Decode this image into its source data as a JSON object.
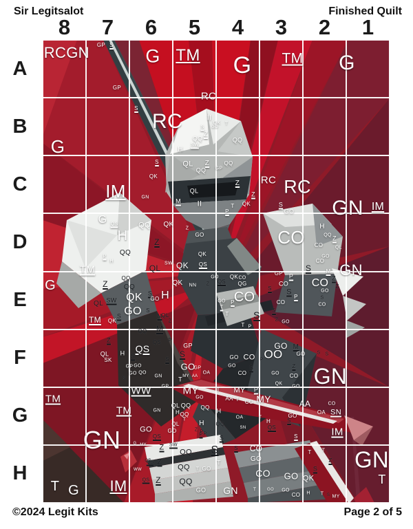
{
  "page": {
    "title_left": "Sir Legitsalot",
    "title_right": "Finished Quilt",
    "footer_left": "©2024 Legit Kits",
    "footer_right": "Page 2 of 5"
  },
  "grid": {
    "columns": [
      "8",
      "7",
      "6",
      "5",
      "4",
      "3",
      "2",
      "1"
    ],
    "rows": [
      "A",
      "B",
      "C",
      "D",
      "E",
      "F",
      "G",
      "H"
    ]
  },
  "colors": {
    "label_light": "#ffffff",
    "label_dark": "#15181c",
    "grid_line": "#ffffff",
    "bg_base": "#8f1a28",
    "bright_red": "#c50f20",
    "maroon": "#5e1c2e"
  },
  "labels": [
    [
      "RC",
      18,
      19,
      22,
      ""
    ],
    [
      "GN",
      51,
      19,
      22,
      ""
    ],
    [
      "GP",
      85,
      8,
      8,
      ""
    ],
    [
      "S",
      100,
      8,
      8,
      "u"
    ],
    [
      "G",
      160,
      24,
      27,
      ""
    ],
    [
      "TM",
      211,
      23,
      24,
      "u"
    ],
    [
      "G",
      290,
      37,
      34,
      ""
    ],
    [
      "TM",
      363,
      27,
      21,
      "u"
    ],
    [
      "G",
      442,
      34,
      30,
      ""
    ],
    [
      "GP",
      108,
      70,
      8,
      ""
    ],
    [
      "RC",
      241,
      82,
      15,
      ""
    ],
    [
      "G",
      22,
      155,
      26,
      ""
    ],
    [
      "RC",
      181,
      119,
      30,
      ""
    ],
    [
      "S",
      136,
      100,
      8,
      "u"
    ],
    [
      "II",
      242,
      114,
      11,
      ""
    ],
    [
      "QK",
      253,
      121,
      7,
      ""
    ],
    [
      "T",
      267,
      122,
      7,
      ""
    ],
    [
      "Z",
      237,
      138,
      10,
      "u"
    ],
    [
      "QQ",
      225,
      144,
      9,
      ""
    ],
    [
      "QQ",
      283,
      146,
      9,
      ""
    ],
    [
      "SW",
      221,
      153,
      7,
      "u"
    ],
    [
      "S",
      232,
      127,
      7,
      "u"
    ],
    [
      "GO",
      250,
      127,
      6,
      ""
    ],
    [
      "H",
      200,
      160,
      10,
      ""
    ],
    [
      "QL",
      211,
      181,
      11,
      ""
    ],
    [
      "Z",
      239,
      180,
      10,
      "u"
    ],
    [
      "QQ",
      230,
      190,
      9,
      ""
    ],
    [
      "IM",
      106,
      220,
      26,
      "u"
    ],
    [
      "M",
      197,
      235,
      9,
      "u"
    ],
    [
      "II",
      228,
      239,
      11,
      ""
    ],
    [
      "QL",
      220,
      220,
      9,
      ""
    ],
    [
      "RC",
      328,
      204,
      15,
      ""
    ],
    [
      "RC",
      370,
      214,
      27,
      ""
    ],
    [
      "GN",
      443,
      245,
      30,
      ""
    ],
    [
      "IM",
      487,
      243,
      16,
      "u"
    ],
    [
      "S",
      166,
      178,
      8,
      "u"
    ],
    [
      "QK",
      161,
      199,
      8,
      ""
    ],
    [
      "GN",
      149,
      229,
      7,
      ""
    ],
    [
      "QQ",
      270,
      180,
      8,
      ""
    ],
    [
      "GP",
      256,
      187,
      7,
      ""
    ],
    [
      "Z",
      283,
      209,
      10,
      "u"
    ],
    [
      "Z",
      306,
      225,
      9,
      "u"
    ],
    [
      "QK",
      296,
      239,
      8,
      ""
    ],
    [
      "S",
      346,
      240,
      9,
      "u"
    ],
    [
      "GO",
      358,
      250,
      9,
      ""
    ],
    [
      "T",
      276,
      242,
      8,
      ""
    ],
    [
      "P",
      268,
      250,
      8,
      "u"
    ],
    [
      "G",
      87,
      262,
      16,
      ""
    ],
    [
      "QS",
      104,
      268,
      7,
      "u"
    ],
    [
      "H",
      116,
      285,
      20,
      ""
    ],
    [
      "QQ",
      148,
      270,
      11,
      ""
    ],
    [
      "QK",
      183,
      269,
      10,
      ""
    ],
    [
      "Z",
      166,
      294,
      12,
      "ud"
    ],
    [
      "QQ",
      120,
      310,
      10,
      "d"
    ],
    [
      "P",
      90,
      315,
      7,
      "u"
    ],
    [
      "H",
      100,
      322,
      7,
      ""
    ],
    [
      "QL",
      163,
      332,
      12,
      "d"
    ],
    [
      "GO",
      228,
      284,
      8,
      ""
    ],
    [
      "QK",
      232,
      312,
      8,
      ""
    ],
    [
      "Z",
      210,
      274,
      7,
      ""
    ],
    [
      "CO",
      361,
      287,
      26,
      ""
    ],
    [
      "H",
      406,
      272,
      10,
      ""
    ],
    [
      "QQ",
      414,
      284,
      7,
      ""
    ],
    [
      "Z",
      424,
      289,
      9,
      "u"
    ],
    [
      "CO",
      401,
      299,
      8,
      ""
    ],
    [
      "QL",
      430,
      302,
      7,
      ""
    ],
    [
      "GO",
      411,
      315,
      7,
      ""
    ],
    [
      "CO",
      403,
      322,
      8,
      ""
    ],
    [
      "GN",
      448,
      335,
      22,
      ""
    ],
    [
      "S",
      386,
      332,
      12,
      "ud"
    ],
    [
      "M",
      415,
      337,
      8,
      "u"
    ],
    [
      "TM",
      65,
      334,
      15,
      "u"
    ],
    [
      "QK",
      203,
      328,
      12,
      ""
    ],
    [
      "QS",
      233,
      327,
      8,
      "u"
    ],
    [
      "SW",
      183,
      325,
      7,
      ""
    ],
    [
      "G",
      11,
      357,
      20,
      ""
    ],
    [
      "Z",
      91,
      355,
      12,
      "ud"
    ],
    [
      "QQ",
      126,
      360,
      10,
      "d"
    ],
    [
      "QQ",
      121,
      347,
      8,
      "d"
    ],
    [
      "QL",
      81,
      384,
      10,
      "d"
    ],
    [
      "SW",
      100,
      379,
      9,
      "ud"
    ],
    [
      "TM",
      76,
      407,
      12,
      "u"
    ],
    [
      "QK",
      133,
      375,
      16,
      ""
    ],
    [
      "S",
      156,
      369,
      9,
      "ud"
    ],
    [
      "GO",
      163,
      377,
      8,
      ""
    ],
    [
      "GO",
      131,
      395,
      16,
      ""
    ],
    [
      "S",
      111,
      402,
      9,
      "ud"
    ],
    [
      "QK",
      101,
      409,
      8,
      ""
    ],
    [
      "S",
      153,
      394,
      8,
      "d"
    ],
    [
      "M",
      170,
      402,
      8,
      "ud"
    ],
    [
      "QL",
      178,
      401,
      8,
      "d"
    ],
    [
      "Z",
      185,
      409,
      7,
      "d"
    ],
    [
      "H",
      178,
      372,
      16,
      ""
    ],
    [
      "QK",
      196,
      354,
      10,
      ""
    ],
    [
      "NN",
      218,
      357,
      7,
      ""
    ],
    [
      "Z",
      240,
      355,
      7,
      "d"
    ],
    [
      "GO",
      250,
      345,
      7,
      ""
    ],
    [
      "QS",
      260,
      352,
      8,
      "ud"
    ],
    [
      "GO",
      260,
      380,
      7,
      ""
    ],
    [
      "T",
      260,
      389,
      7,
      "u"
    ],
    [
      "CO",
      293,
      374,
      20,
      ""
    ],
    [
      "QK",
      278,
      345,
      8,
      ""
    ],
    [
      "CO",
      290,
      346,
      7,
      ""
    ],
    [
      "QG",
      290,
      355,
      8,
      ""
    ],
    [
      "P",
      276,
      382,
      8,
      "u"
    ],
    [
      "T",
      268,
      399,
      8,
      ""
    ],
    [
      "S",
      311,
      400,
      14,
      "ud"
    ],
    [
      "T",
      291,
      415,
      8,
      ""
    ],
    [
      "P",
      301,
      417,
      7,
      ""
    ],
    [
      "GP",
      343,
      340,
      8,
      ""
    ],
    [
      "P",
      361,
      344,
      9,
      "u"
    ],
    [
      "CO",
      350,
      355,
      9,
      ""
    ],
    [
      "S",
      330,
      362,
      8,
      "ud"
    ],
    [
      "S",
      358,
      367,
      11,
      "ud"
    ],
    [
      "P",
      368,
      374,
      8,
      "u"
    ],
    [
      "CO",
      346,
      382,
      8,
      ""
    ],
    [
      "S",
      336,
      394,
      8,
      "ud"
    ],
    [
      "Z",
      340,
      407,
      7,
      "d"
    ],
    [
      "GO",
      353,
      410,
      7,
      ""
    ],
    [
      "CO",
      403,
      354,
      16,
      ""
    ],
    [
      "Z",
      423,
      347,
      9,
      "ud"
    ],
    [
      "Z",
      428,
      359,
      8,
      "d"
    ],
    [
      "GO",
      410,
      365,
      7,
      ""
    ],
    [
      "S",
      406,
      375,
      7,
      "d"
    ],
    [
      "CO",
      406,
      385,
      7,
      ""
    ],
    [
      "QS",
      145,
      449,
      14,
      "u"
    ],
    [
      "QL",
      90,
      457,
      9,
      ""
    ],
    [
      "SK",
      95,
      466,
      8,
      ""
    ],
    [
      "H",
      116,
      456,
      9,
      ""
    ],
    [
      "S",
      131,
      460,
      9,
      "ud"
    ],
    [
      "GP",
      126,
      475,
      7,
      ""
    ],
    [
      "GO",
      138,
      474,
      7,
      ""
    ],
    [
      "GO",
      131,
      485,
      7,
      ""
    ],
    [
      "QO",
      145,
      484,
      7,
      ""
    ],
    [
      "S",
      118,
      492,
      7,
      "d"
    ],
    [
      "GN",
      168,
      489,
      7,
      ""
    ],
    [
      "S",
      181,
      465,
      8,
      "ud"
    ],
    [
      "GP",
      211,
      445,
      9,
      ""
    ],
    [
      "S",
      203,
      457,
      12,
      "ud"
    ],
    [
      "GO",
      211,
      475,
      13,
      ""
    ],
    [
      "GP",
      225,
      477,
      7,
      ""
    ],
    [
      "OA",
      238,
      484,
      7,
      ""
    ],
    [
      "MY",
      208,
      489,
      6,
      ""
    ],
    [
      "AA",
      221,
      489,
      6,
      ""
    ],
    [
      "T",
      200,
      494,
      9,
      ""
    ],
    [
      "GP",
      178,
      504,
      7,
      ""
    ],
    [
      "QQ",
      145,
      424,
      8,
      "d"
    ],
    [
      "M",
      170,
      420,
      12,
      "ud"
    ],
    [
      "P",
      185,
      437,
      8,
      "d"
    ],
    [
      "QS",
      166,
      440,
      8,
      "d"
    ],
    [
      "Z",
      96,
      437,
      9,
      "ud"
    ],
    [
      "GO",
      278,
      462,
      8,
      ""
    ],
    [
      "CO",
      300,
      462,
      11,
      ""
    ],
    [
      "GO",
      275,
      474,
      7,
      ""
    ],
    [
      "S",
      303,
      477,
      9,
      "ud"
    ],
    [
      "CO",
      290,
      485,
      8,
      ""
    ],
    [
      "P",
      318,
      465,
      7,
      "d"
    ],
    [
      "OO",
      335,
      457,
      17,
      ""
    ],
    [
      "GO",
      346,
      445,
      12,
      ""
    ],
    [
      "M",
      368,
      447,
      10,
      "ud"
    ],
    [
      "GO",
      375,
      457,
      8,
      ""
    ],
    [
      "S",
      401,
      455,
      7,
      "d"
    ],
    [
      "S",
      413,
      457,
      7,
      "d"
    ],
    [
      "Z",
      365,
      475,
      8,
      "ud"
    ],
    [
      "GO",
      338,
      485,
      7,
      ""
    ],
    [
      "CO",
      365,
      489,
      8,
      ""
    ],
    [
      "QK",
      343,
      500,
      7,
      ""
    ],
    [
      "GO",
      368,
      504,
      7,
      ""
    ],
    [
      "GN",
      418,
      489,
      32,
      ""
    ],
    [
      "TM",
      15,
      522,
      15,
      "u"
    ],
    [
      "WW",
      143,
      510,
      15,
      "u"
    ],
    [
      "MY",
      215,
      510,
      15,
      ""
    ],
    [
      "T",
      255,
      509,
      9,
      ""
    ],
    [
      "MY",
      286,
      510,
      11,
      ""
    ],
    [
      "P",
      310,
      509,
      9,
      "u"
    ],
    [
      "MY",
      321,
      522,
      14,
      ""
    ],
    [
      "AA",
      271,
      522,
      8,
      ""
    ],
    [
      "T",
      283,
      523,
      8,
      ""
    ],
    [
      "CO",
      300,
      527,
      8,
      ""
    ],
    [
      "AA",
      381,
      529,
      12,
      ""
    ],
    [
      "CO",
      420,
      529,
      7,
      ""
    ],
    [
      "OA",
      405,
      542,
      8,
      ""
    ],
    [
      "SN",
      426,
      542,
      11,
      "u"
    ],
    [
      "TM",
      118,
      539,
      15,
      "u"
    ],
    [
      "GN",
      166,
      539,
      7,
      ""
    ],
    [
      "QL",
      193,
      532,
      9,
      ""
    ],
    [
      "QQ",
      208,
      532,
      9,
      ""
    ],
    [
      "QQ",
      236,
      535,
      8,
      ""
    ],
    [
      "H",
      196,
      542,
      8,
      ""
    ],
    [
      "QQ",
      206,
      545,
      8,
      ""
    ],
    [
      "GO",
      228,
      520,
      7,
      ""
    ],
    [
      "H",
      256,
      540,
      9,
      ""
    ],
    [
      "QL",
      193,
      559,
      8,
      ""
    ],
    [
      "T",
      206,
      552,
      7,
      ""
    ],
    [
      "GO",
      150,
      567,
      11,
      ""
    ],
    [
      "GO",
      188,
      569,
      8,
      ""
    ],
    [
      "Z",
      223,
      567,
      7,
      "d"
    ],
    [
      "P",
      231,
      570,
      7,
      "d"
    ],
    [
      "QQ",
      258,
      559,
      8,
      "d"
    ],
    [
      "H",
      231,
      558,
      10,
      ""
    ],
    [
      "P",
      236,
      573,
      7,
      "d"
    ],
    [
      "OA",
      286,
      549,
      7,
      ""
    ],
    [
      "T",
      316,
      549,
      7,
      ""
    ],
    [
      "S",
      293,
      550,
      7,
      "d"
    ],
    [
      "GO",
      363,
      547,
      8,
      ""
    ],
    [
      "S",
      358,
      554,
      8,
      "ud"
    ],
    [
      "H",
      328,
      555,
      8,
      ""
    ],
    [
      "QS",
      333,
      564,
      8,
      "ud"
    ],
    [
      "SN",
      291,
      564,
      6,
      ""
    ],
    [
      "IM",
      428,
      570,
      15,
      "u"
    ],
    [
      "GN",
      86,
      582,
      36,
      ""
    ],
    [
      "G",
      134,
      587,
      6,
      ""
    ],
    [
      "MY",
      146,
      589,
      6,
      ""
    ],
    [
      "QS",
      166,
      577,
      8,
      "ud"
    ],
    [
      "P",
      230,
      574,
      7,
      "ud"
    ],
    [
      "S",
      260,
      579,
      9,
      "ud"
    ],
    [
      "S",
      368,
      577,
      8,
      "u"
    ],
    [
      "T",
      18,
      649,
      20,
      ""
    ],
    [
      "G",
      45,
      655,
      20,
      ""
    ],
    [
      "IM",
      110,
      649,
      22,
      "u"
    ],
    [
      "WW",
      138,
      625,
      6,
      ""
    ],
    [
      "QS",
      156,
      614,
      7,
      "ud"
    ],
    [
      "QS",
      150,
      640,
      7,
      "ud"
    ],
    [
      "Z",
      173,
      593,
      11,
      "ud"
    ],
    [
      "Z",
      170,
      614,
      11,
      "ud"
    ],
    [
      "Z",
      168,
      640,
      12,
      "ud"
    ],
    [
      "SW",
      190,
      589,
      7,
      "ud"
    ],
    [
      "QQ",
      208,
      600,
      11,
      "d"
    ],
    [
      "QQ",
      205,
      622,
      11,
      "d"
    ],
    [
      "QQ",
      208,
      642,
      12,
      "d"
    ],
    [
      "QB",
      153,
      612,
      6,
      "d"
    ],
    [
      "S",
      250,
      597,
      16,
      "ud"
    ],
    [
      "T",
      256,
      615,
      9,
      ""
    ],
    [
      "GO",
      230,
      655,
      9,
      ""
    ],
    [
      "GO",
      238,
      624,
      8,
      ""
    ],
    [
      "T",
      225,
      624,
      7,
      ""
    ],
    [
      "CO",
      310,
      594,
      12,
      ""
    ],
    [
      "S",
      281,
      594,
      8,
      "ud"
    ],
    [
      "GO",
      310,
      610,
      10,
      ""
    ],
    [
      "CO",
      320,
      630,
      14,
      ""
    ],
    [
      "CO",
      368,
      662,
      8,
      ""
    ],
    [
      "GO",
      361,
      634,
      13,
      ""
    ],
    [
      "QK",
      386,
      638,
      11,
      ""
    ],
    [
      "S",
      396,
      624,
      9,
      "ud"
    ],
    [
      "Z",
      418,
      612,
      8,
      "ud"
    ],
    [
      "GN",
      273,
      655,
      14,
      ""
    ],
    [
      "GN",
      478,
      610,
      33,
      ""
    ],
    [
      "T",
      493,
      639,
      18,
      ""
    ],
    [
      "MY",
      426,
      664,
      7,
      ""
    ],
    [
      "S",
      415,
      662,
      6,
      "d"
    ],
    [
      "T",
      406,
      660,
      7,
      ""
    ],
    [
      "H",
      386,
      659,
      7,
      ""
    ],
    [
      "GO",
      353,
      655,
      7,
      ""
    ],
    [
      "GO",
      331,
      654,
      6,
      ""
    ],
    [
      "T",
      308,
      654,
      7,
      ""
    ],
    [
      "T",
      388,
      600,
      8,
      ""
    ],
    [
      "T",
      408,
      597,
      7,
      ""
    ]
  ]
}
